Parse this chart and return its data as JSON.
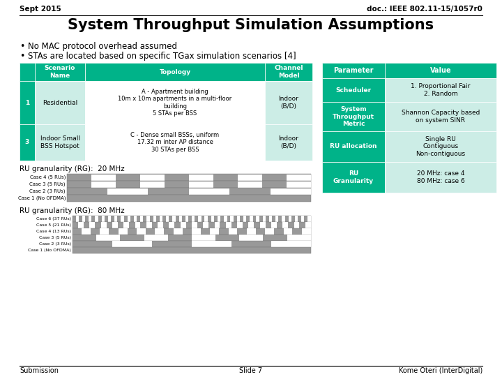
{
  "title": "System Throughput Simulation Assumptions",
  "header_left": "Sept 2015",
  "header_right": "doc.: IEEE 802.11-15/1057r0",
  "bullet1": "No MAC protocol overhead assumed",
  "bullet2": "STAs are located based on specific TGax simulation scenarios [4]",
  "footer_left": "Submission",
  "footer_center": "Slide 7",
  "footer_right": "Kome Oteri (InterDigital)",
  "teal_dark": "#00B389",
  "teal_light": "#CCEDE6",
  "white": "#FFFFFF",
  "left_table_headers": [
    "Scenario\nName",
    "Topology",
    "Channel\nModel"
  ],
  "left_table_row1_num": "1",
  "left_table_row1_name": "Residential",
  "left_table_row1_topology": "A - Apartment building\n10m x 10m apartments in a multi-floor\nbuilding\n5 STAs per BSS",
  "left_table_row1_channel": "Indoor\n(B/D)",
  "left_table_row2_num": "3",
  "left_table_row2_name": "Indoor Small\nBSS Hotspot",
  "left_table_row2_topology": "C - Dense small BSSs, uniform\n17.32 m inter AP distance\n30 STAs per BSS",
  "left_table_row2_channel": "Indoor\n(B/D)",
  "right_table_params": [
    "Parameter",
    "Value"
  ],
  "right_table_rows": [
    [
      "Scheduler",
      "1. Proportional Fair\n2. Random"
    ],
    [
      "System\nThroughput\nMetric",
      "Shannon Capacity based\non system SINR"
    ],
    [
      "RU allocation",
      "Single RU\nContiguous\nNon-contiguous"
    ],
    [
      "RU\nGranularity",
      "20 MHz: case 4\n80 MHz: case 6"
    ]
  ],
  "ru20_label": "RU granularity (RG):  20 MHz",
  "ru80_label": "RU granularity (RG):  80 MHz",
  "ru20_cases": [
    "Case 4 (5 RUs)",
    "Case 3 (5 RUs)",
    "Case 2 (3 RUs)",
    "Case 1 (No OFDMA)"
  ],
  "ru20_rus": [
    5,
    5,
    3,
    0
  ],
  "ru80_cases": [
    "Case 6 (37 RUs)",
    "Case 5 (21 RUs)",
    "Case 4 (13 RUs)",
    "Case 3 (5 RUs)",
    "Case 2 (3 RUs)",
    "Case 1 (No OFDMA)"
  ],
  "ru80_rus": [
    37,
    21,
    13,
    5,
    3,
    0
  ]
}
